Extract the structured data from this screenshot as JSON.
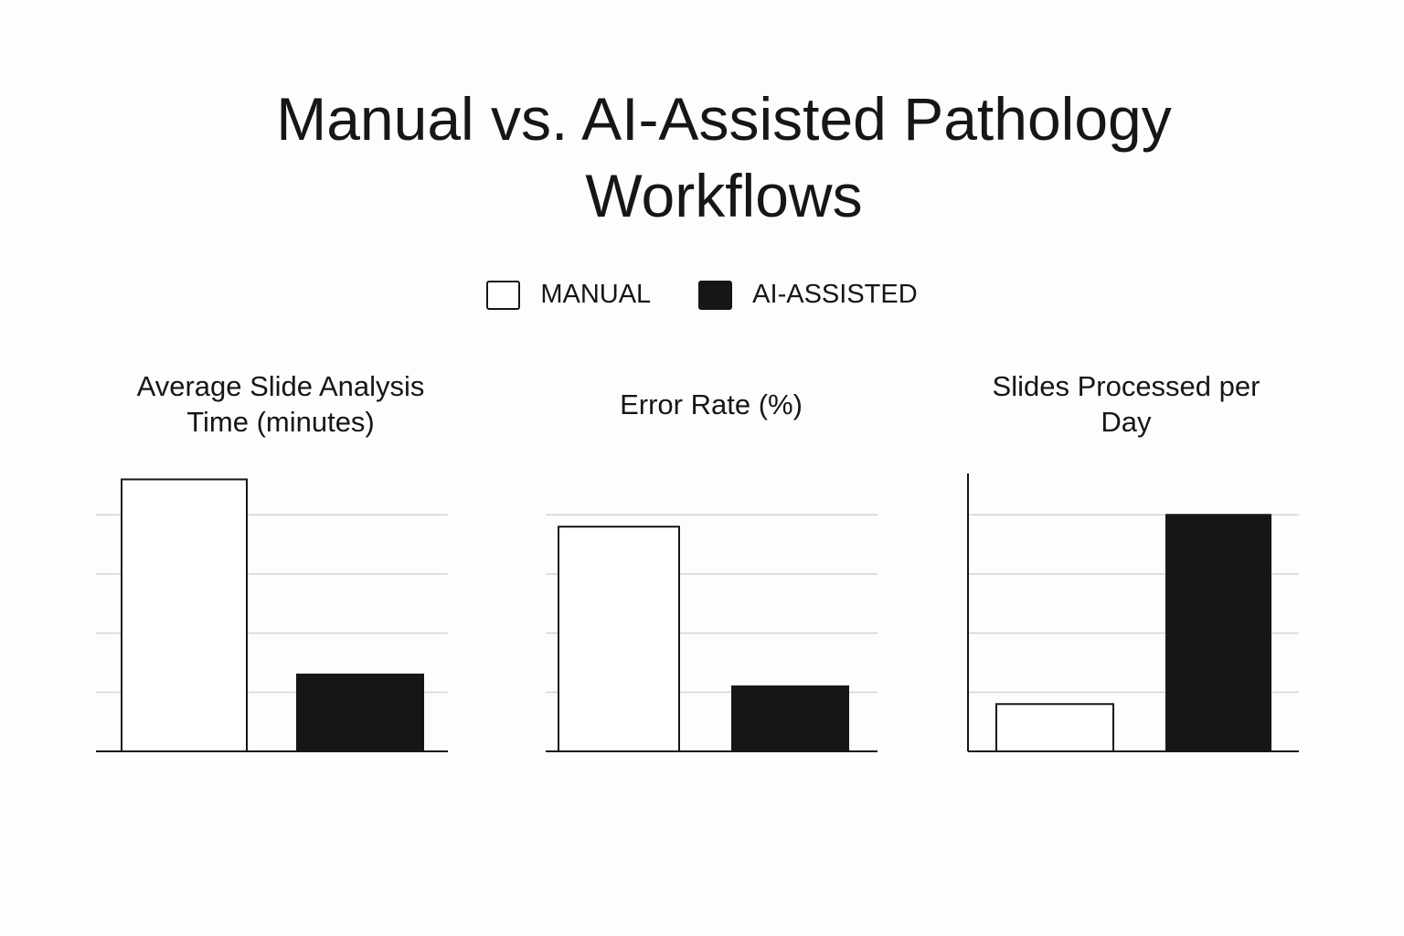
{
  "title": "Manual vs. AI-Assisted Pathology Workflows",
  "chart_data": [
    {
      "type": "bar",
      "title": "Average Slide Analysis Time (minutes)",
      "axis_line": false,
      "grid": true,
      "ylim": [
        0,
        4.7
      ],
      "yticks": [
        1,
        2,
        3,
        4
      ],
      "series": [
        {
          "name": "MANUAL",
          "color": "#ffffff",
          "values": [
            4.6
          ]
        },
        {
          "name": "AI-ASSISTED",
          "color": "#161616",
          "values": [
            1.3
          ]
        }
      ]
    },
    {
      "type": "bar",
      "title": "Error Rate (%)",
      "axis_line": false,
      "grid": true,
      "ylim": [
        0,
        4.7
      ],
      "yticks": [
        1,
        2,
        3,
        4
      ],
      "series": [
        {
          "name": "MANUAL",
          "color": "#ffffff",
          "values": [
            3.8
          ]
        },
        {
          "name": "AI-ASSISTED",
          "color": "#161616",
          "values": [
            1.1
          ]
        }
      ]
    },
    {
      "type": "bar",
      "title": "Slides Processed per Day",
      "axis_line": true,
      "grid": true,
      "ylim": [
        0,
        4.7
      ],
      "yticks": [
        1,
        2,
        3,
        4
      ],
      "series": [
        {
          "name": "MANUAL",
          "color": "#ffffff",
          "values": [
            0.8
          ]
        },
        {
          "name": "AI-ASSISTED",
          "color": "#161616",
          "values": [
            4.0
          ]
        }
      ]
    }
  ]
}
